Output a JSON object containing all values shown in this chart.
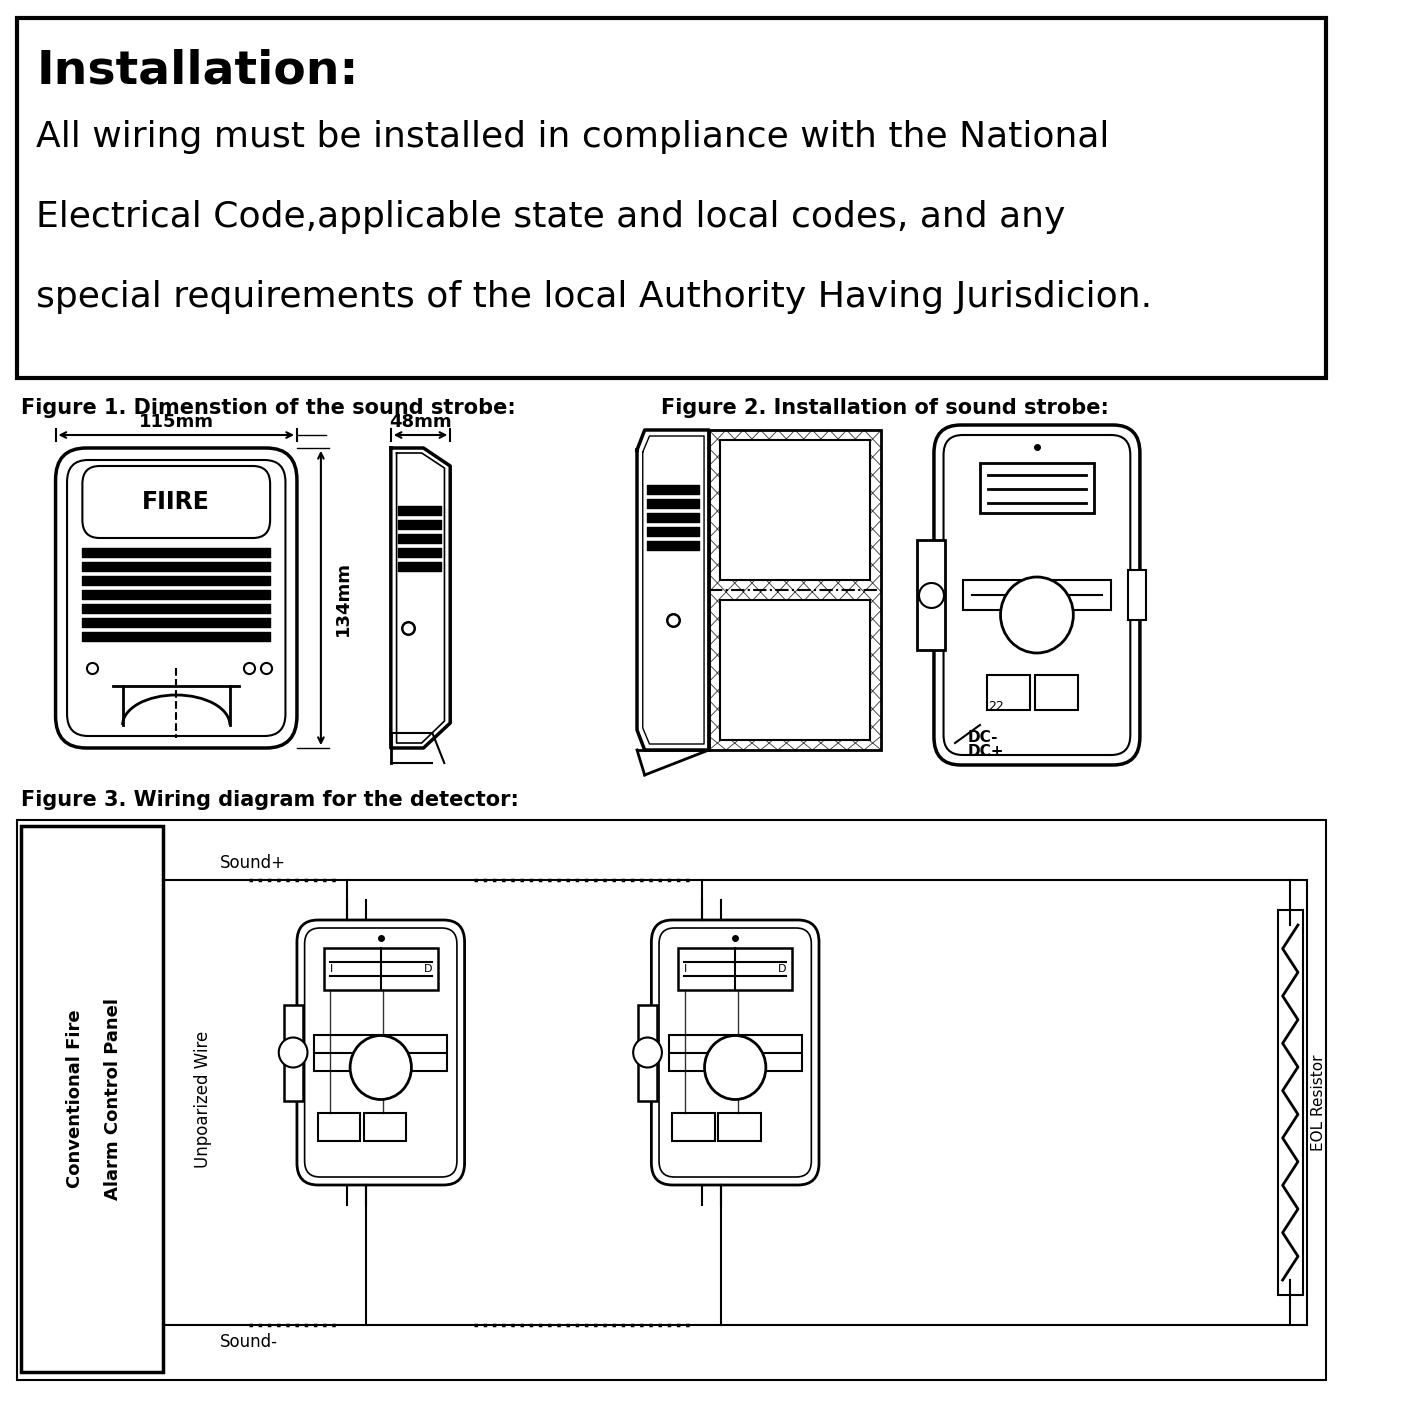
{
  "bg_color": "#ffffff",
  "text_color": "#000000",
  "title_bold": "Installation:",
  "line1": "All wiring must be installed in compliance with the National",
  "line2": "Electrical Code,applicable state and local codes, and any",
  "line3": "special requirements of the local Authority Having Jurisdicion.",
  "fig1_label": "Figure 1. Dimenstion of the sound strobe:",
  "fig2_label": "Figure 2. Installation of sound strobe:",
  "fig3_label": "Figure 3. Wiring diagram for the detector:",
  "dim_115": "115mm",
  "dim_134": "134mm",
  "dim_48": "48mm",
  "fiire": "FIIRE",
  "sound_plus": "Sound+",
  "sound_minus": "Sound-",
  "panel_line1": "Conventional Fire",
  "panel_line2": "Alarm Control Panel",
  "wire_label": "Unpoarized Wire",
  "eol_label": "EOL Resistor",
  "dc_minus": "DC-",
  "dc_plus": "DC+"
}
